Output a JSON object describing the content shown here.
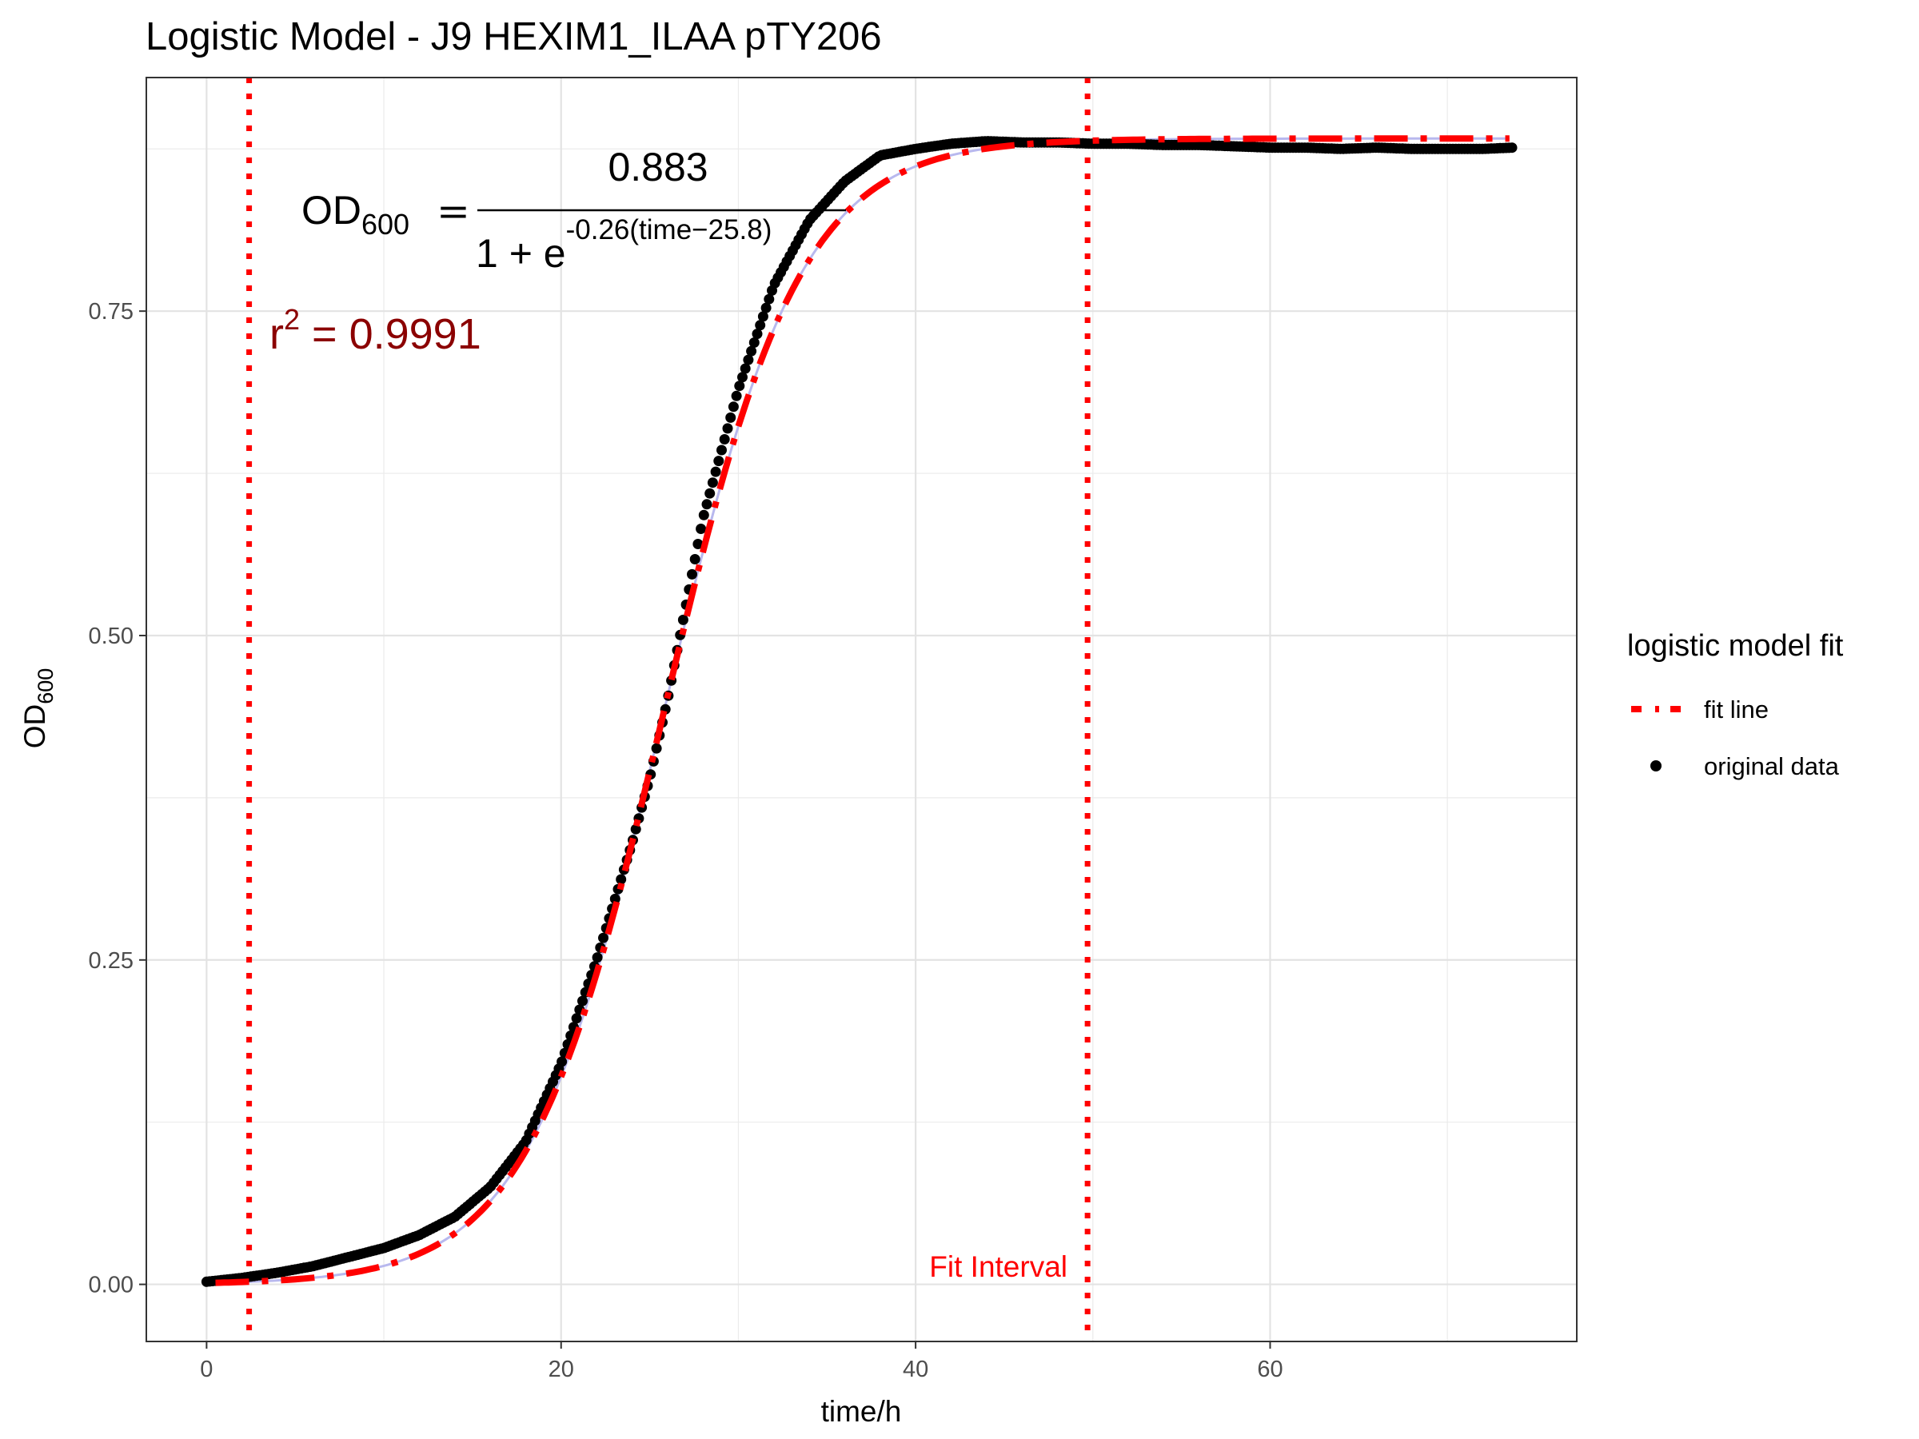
{
  "chart_data": {
    "type": "scatter",
    "title": "Logistic Model -  J9 HEXIM1_ILAA pTY206",
    "xlabel": "time/h",
    "ylabel": {
      "main": "OD",
      "sub": "600"
    },
    "xlim": [
      -3.4,
      77.3
    ],
    "ylim": [
      -0.044,
      0.93
    ],
    "x_ticks": [
      0,
      20,
      40,
      60
    ],
    "x_tick_labels": [
      "0",
      "20",
      "40",
      "60"
    ],
    "y_ticks": [
      0.0,
      0.25,
      0.5,
      0.75
    ],
    "y_tick_labels": [
      "0.00",
      "0.25",
      "0.50",
      "0.75"
    ],
    "grid": true,
    "legend": {
      "title": "logistic model fit",
      "placement": "right",
      "entries": [
        {
          "label": "fit line",
          "style": "dashed",
          "color": "#ff0000"
        },
        {
          "label": "original data",
          "style": "point",
          "color": "#000000"
        }
      ]
    },
    "fit_interval": {
      "start": 2.4,
      "end": 49.7,
      "label": "Fit Interval",
      "color": "#ff0000"
    },
    "model": {
      "K": 0.883,
      "r": 0.26,
      "t0": 25.8
    },
    "equation": {
      "lhs_main": "OD",
      "lhs_sub": "600",
      "numerator": "0.883",
      "denominator_prefix": "1 + e",
      "exponent": "-0.26(time−25.8)"
    },
    "r_squared": {
      "label": "r",
      "power": "2",
      "value": "0.9991"
    },
    "series": [
      {
        "name": "original data",
        "type": "scatter",
        "color": "#000000",
        "x": [
          0,
          2,
          4,
          6,
          8,
          10,
          12,
          14,
          16,
          18,
          20,
          22,
          24,
          25,
          26,
          27,
          28,
          30,
          32,
          34,
          36,
          38,
          40,
          42,
          44,
          46,
          48,
          50,
          52,
          54,
          56,
          58,
          60,
          62,
          64,
          66,
          68,
          70,
          72,
          73.7
        ],
        "y": [
          0.002,
          0.005,
          0.009,
          0.014,
          0.021,
          0.028,
          0.038,
          0.052,
          0.075,
          0.11,
          0.17,
          0.25,
          0.34,
          0.39,
          0.45,
          0.52,
          0.59,
          0.69,
          0.77,
          0.82,
          0.85,
          0.87,
          0.875,
          0.879,
          0.881,
          0.88,
          0.88,
          0.879,
          0.879,
          0.878,
          0.878,
          0.877,
          0.876,
          0.876,
          0.875,
          0.876,
          0.875,
          0.875,
          0.875,
          0.876
        ]
      }
    ]
  }
}
